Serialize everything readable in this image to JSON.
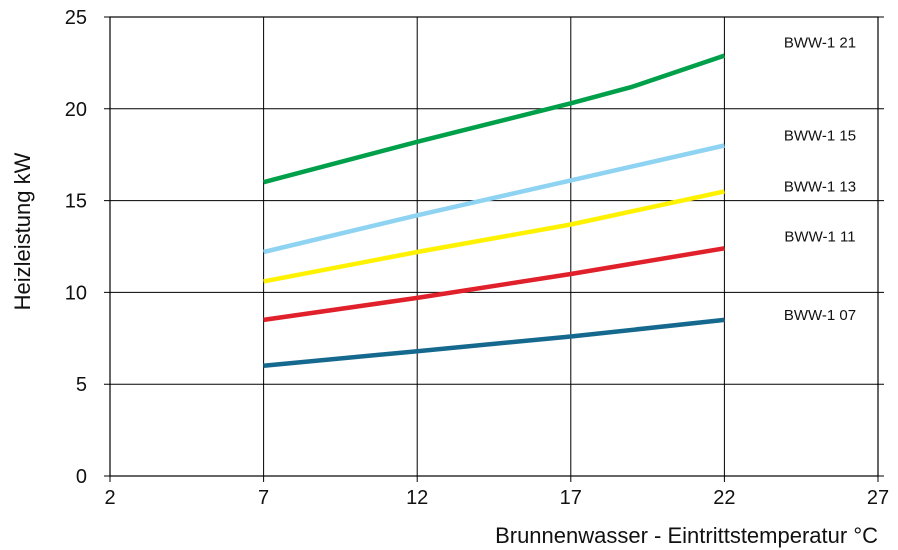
{
  "chart_data": {
    "type": "line",
    "title": "",
    "xlabel": "Brunnenwasser - Eintrittstemperatur °C",
    "ylabel": "Heizleistung  kW",
    "xlim": [
      2,
      27
    ],
    "ylim": [
      0,
      25
    ],
    "xticks": [
      2,
      7,
      12,
      17,
      22,
      27
    ],
    "yticks": [
      0,
      5,
      10,
      15,
      20,
      25
    ],
    "xtick_labels": [
      "2",
      "7",
      "12",
      "17",
      "22",
      "27"
    ],
    "ytick_labels": [
      "0",
      "5",
      "10",
      "15",
      "20",
      "25"
    ],
    "grid": true,
    "legend": "none",
    "series": [
      {
        "name": "BWW-1 21",
        "color": "#00a04b",
        "x": [
          7,
          12,
          17,
          19,
          22
        ],
        "y": [
          16.0,
          18.2,
          20.3,
          21.2,
          22.9
        ]
      },
      {
        "name": "BWW-1 15",
        "color": "#8fd3f3",
        "x": [
          7,
          12,
          17,
          22
        ],
        "y": [
          12.2,
          14.2,
          16.1,
          18.0
        ]
      },
      {
        "name": "BWW-1 13",
        "color": "#fff200",
        "x": [
          7,
          12,
          17,
          22
        ],
        "y": [
          10.6,
          12.2,
          13.7,
          15.5
        ]
      },
      {
        "name": "BWW-1 11",
        "color": "#e0202a",
        "x": [
          7,
          12,
          17,
          22
        ],
        "y": [
          8.5,
          9.7,
          11.0,
          12.4
        ]
      },
      {
        "name": "BWW-1 07",
        "color": "#16698e",
        "x": [
          7,
          12,
          17,
          22
        ],
        "y": [
          6.0,
          6.8,
          7.6,
          8.5
        ]
      }
    ]
  }
}
